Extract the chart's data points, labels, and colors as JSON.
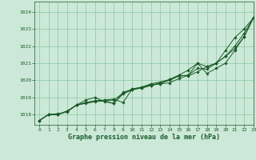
{
  "xlabel": "Graphe pression niveau de la mer (hPa)",
  "background_color": "#cce8d8",
  "grid_color": "#88c8a0",
  "line_color": "#1a5c28",
  "xlim": [
    -0.5,
    23
  ],
  "ylim": [
    1017.4,
    1024.6
  ],
  "yticks": [
    1018,
    1019,
    1020,
    1021,
    1022,
    1023,
    1024
  ],
  "xticks": [
    0,
    1,
    2,
    3,
    4,
    5,
    6,
    7,
    8,
    9,
    10,
    11,
    12,
    13,
    14,
    15,
    16,
    17,
    18,
    19,
    20,
    21,
    22,
    23
  ],
  "series": [
    [
      1017.65,
      1018.0,
      1018.0,
      1018.2,
      1018.55,
      1018.7,
      1018.8,
      1018.85,
      1018.9,
      1018.7,
      1019.5,
      1019.55,
      1019.7,
      1019.85,
      1020.0,
      1020.25,
      1020.3,
      1020.7,
      1020.65,
      1021.0,
      1021.75,
      1022.5,
      1023.0,
      1023.65
    ],
    [
      1017.65,
      1018.0,
      1018.0,
      1018.2,
      1018.55,
      1018.85,
      1019.0,
      1018.75,
      1018.65,
      1019.3,
      1019.45,
      1019.6,
      1019.75,
      1019.8,
      1020.05,
      1020.3,
      1020.6,
      1021.0,
      1020.4,
      1020.7,
      1021.0,
      1021.75,
      1022.55,
      1023.65
    ],
    [
      1017.65,
      1018.0,
      1018.0,
      1018.2,
      1018.55,
      1018.7,
      1018.8,
      1018.8,
      1018.65,
      1019.2,
      1019.45,
      1019.55,
      1019.7,
      1019.8,
      1019.85,
      1020.1,
      1020.3,
      1021.0,
      1020.8,
      1021.0,
      1021.4,
      1022.0,
      1022.75,
      1023.65
    ],
    [
      1017.65,
      1018.0,
      1018.05,
      1018.15,
      1018.55,
      1018.65,
      1018.75,
      1018.8,
      1018.85,
      1019.25,
      1019.5,
      1019.6,
      1019.8,
      1019.9,
      1020.05,
      1020.3,
      1020.25,
      1020.5,
      1020.8,
      1021.0,
      1021.4,
      1021.85,
      1022.55,
      1023.65
    ]
  ]
}
